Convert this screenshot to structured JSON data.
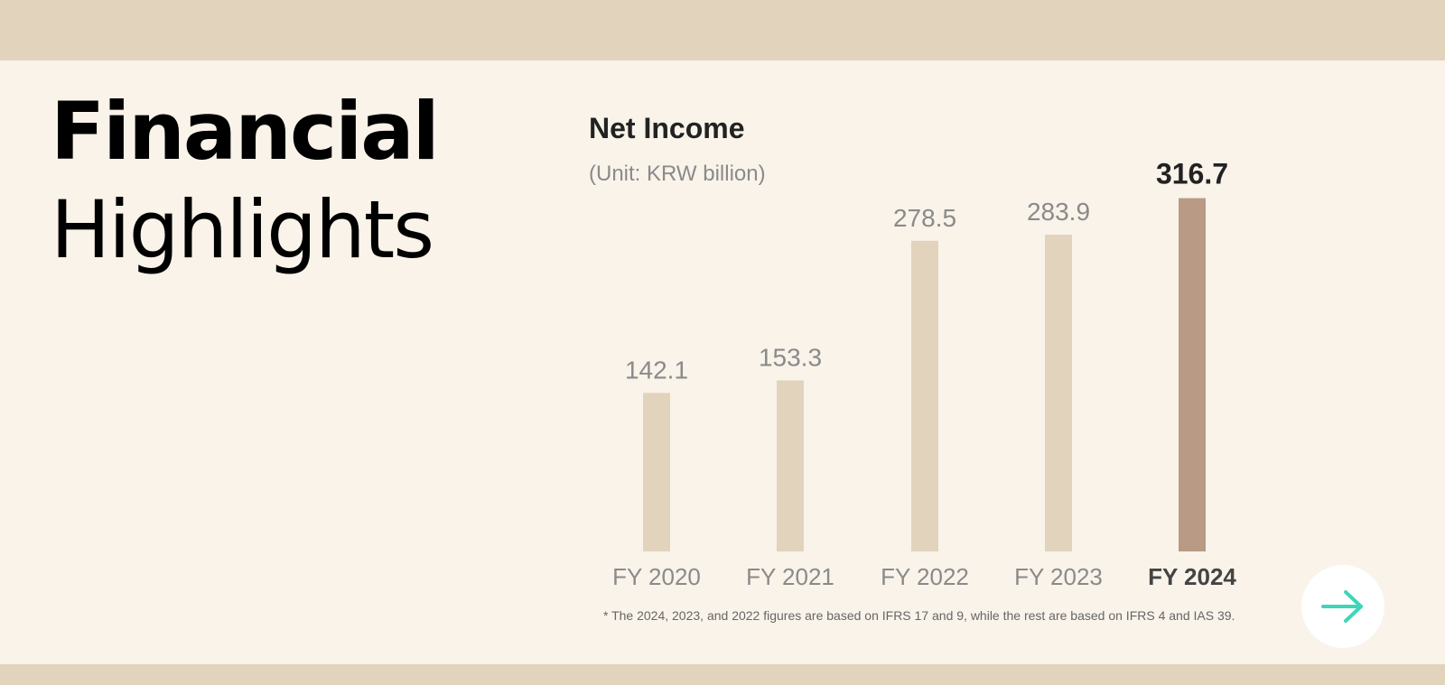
{
  "headline": {
    "line1": "Financial",
    "line2": "Highlights"
  },
  "chart_data": {
    "type": "bar",
    "title": "Net Income",
    "unit": "(Unit: KRW billion)",
    "categories": [
      "FY 2020",
      "FY 2021",
      "FY 2022",
      "FY 2023",
      "FY 2024"
    ],
    "values": [
      142.1,
      153.3,
      278.5,
      283.9,
      316.7
    ],
    "value_labels": [
      "142.1",
      "153.3",
      "278.5",
      "283.9",
      "316.7"
    ],
    "highlight_index": 4,
    "grid": false,
    "colors": {
      "bar": "#e2d3bd",
      "highlight": "#b89a85",
      "label": "#8a8a8a",
      "highlight_label": "#222222"
    }
  },
  "footnote": "* The 2024, 2023, and 2022 figures are based on IFRS 17 and 9, while the rest are based on IFRS 4 and IAS 39.",
  "next_button": {
    "icon": "arrow-right-icon",
    "color": "#3ed6b8"
  }
}
